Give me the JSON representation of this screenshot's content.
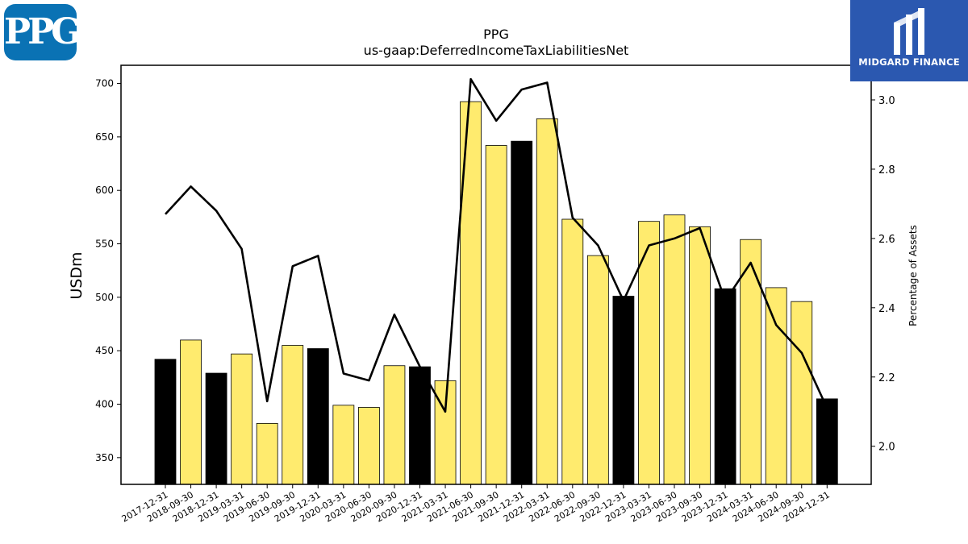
{
  "logos": {
    "left": "PPG",
    "right": "MIDGARD FINANCE"
  },
  "chart_data": {
    "type": "bar",
    "title": "PPG",
    "subtitle": "us-gaap:DeferredIncomeTaxLiabilitiesNet",
    "ylabel": "USDm",
    "y2label": "Percentage of Assets",
    "ylim": [
      325,
      717
    ],
    "y2lim": [
      1.89,
      3.1
    ],
    "yticks": [
      350,
      400,
      450,
      500,
      550,
      600,
      650,
      700
    ],
    "y2ticks": [
      "2.0",
      "2.2",
      "2.4",
      "2.6",
      "2.8",
      "3.0"
    ],
    "categories": [
      "2017-12-31",
      "2018-09-30",
      "2018-12-31",
      "2019-03-31",
      "2019-06-30",
      "2019-09-30",
      "2019-12-31",
      "2020-03-31",
      "2020-06-30",
      "2020-09-30",
      "2020-12-31",
      "2021-03-31",
      "2021-06-30",
      "2021-09-30",
      "2021-12-31",
      "2022-03-31",
      "2022-06-30",
      "2022-09-30",
      "2022-12-31",
      "2023-03-31",
      "2023-06-30",
      "2023-09-30",
      "2023-12-31",
      "2024-03-31",
      "2024-06-30",
      "2024-09-30",
      "2024-12-31"
    ],
    "series": [
      {
        "type": "bar",
        "values": [
          442,
          460,
          429,
          447,
          382,
          455,
          452,
          399,
          397,
          436,
          435,
          422,
          683,
          642,
          646,
          667,
          573,
          539,
          501,
          571,
          577,
          566,
          508,
          554,
          509,
          496,
          405
        ]
      },
      {
        "type": "line",
        "axis": "right",
        "values": [
          2.67,
          2.75,
          2.68,
          2.57,
          2.13,
          2.52,
          2.55,
          2.21,
          2.19,
          2.38,
          2.23,
          2.1,
          3.06,
          2.94,
          3.03,
          3.05,
          2.66,
          2.58,
          2.42,
          2.58,
          2.6,
          2.63,
          2.42,
          2.53,
          2.35,
          2.27,
          2.11
        ]
      }
    ],
    "colors": {
      "year_end_bar": "#000000",
      "quarter_bar": "#ffeb6e",
      "line": "#000000"
    }
  }
}
